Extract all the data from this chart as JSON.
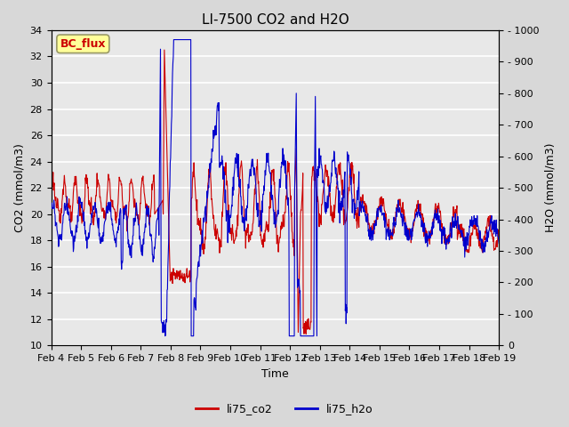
{
  "title": "LI-7500 CO2 and H2O",
  "xlabel": "Time",
  "ylabel_left": "CO2 (mmol/m3)",
  "ylabel_right": "H2O (mmol/m3)",
  "ylim_left": [
    10,
    34
  ],
  "ylim_right": [
    0,
    1000
  ],
  "yticks_left": [
    10,
    12,
    14,
    16,
    18,
    20,
    22,
    24,
    26,
    28,
    30,
    32,
    34
  ],
  "yticks_right": [
    0,
    100,
    200,
    300,
    400,
    500,
    600,
    700,
    800,
    900,
    1000
  ],
  "xtick_labels": [
    "Feb 4",
    "Feb 5",
    "Feb 6",
    "Feb 7",
    "Feb 8",
    "Feb 9",
    "Feb 10",
    "Feb 11",
    "Feb 12",
    "Feb 13",
    "Feb 14",
    "Feb 15",
    "Feb 16",
    "Feb 17",
    "Feb 18",
    "Feb 19"
  ],
  "co2_color": "#cc0000",
  "h2o_color": "#0000cc",
  "background_color": "#d8d8d8",
  "plot_bg_color": "#e8e8e8",
  "grid_color": "#ffffff",
  "legend_label_co2": "li75_co2",
  "legend_label_h2o": "li75_h2o",
  "bc_flux_label": "BC_flux",
  "bc_flux_bg": "#ffff99",
  "bc_flux_border": "#999966",
  "title_fontsize": 11,
  "axis_label_fontsize": 9,
  "tick_fontsize": 8,
  "legend_fontsize": 9
}
